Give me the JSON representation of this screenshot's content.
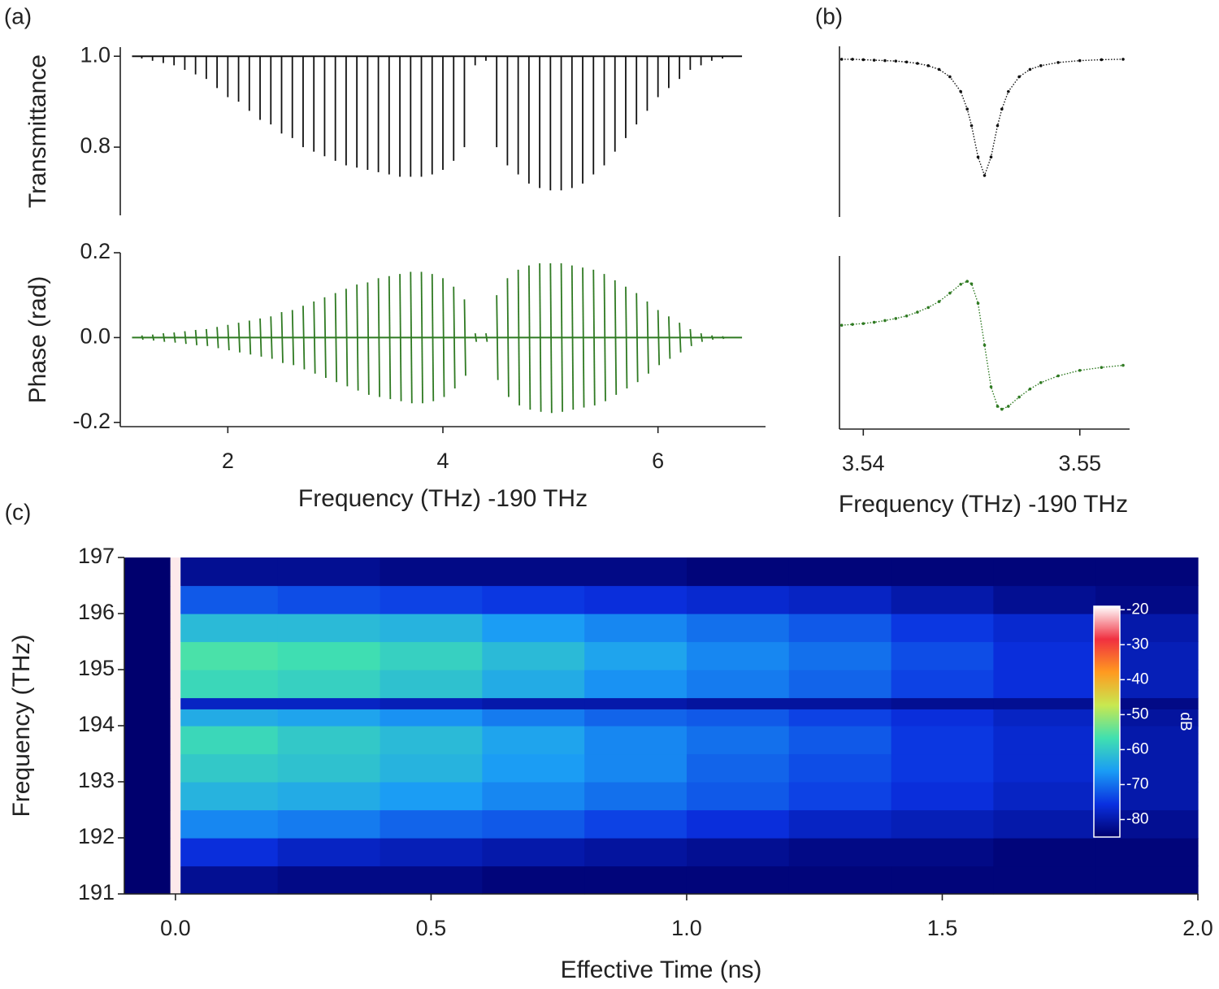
{
  "chart_data": [
    {
      "type": "comb",
      "panel": "(a)",
      "ylabel": "Transmittance",
      "color": "#111111",
      "baseline": 1,
      "xlim": [
        1.0,
        7.0
      ],
      "ylim": [
        0.65,
        1.02
      ],
      "yticks": [
        {
          "value": 1,
          "label": "1.0"
        },
        0.8
      ],
      "x": [
        1.2,
        1.3,
        1.4,
        1.5,
        1.6,
        1.7,
        1.8,
        1.9,
        2.0,
        2.1,
        2.2,
        2.3,
        2.4,
        2.5,
        2.6,
        2.7,
        2.8,
        2.9,
        3.0,
        3.1,
        3.2,
        3.3,
        3.4,
        3.5,
        3.6,
        3.7,
        3.8,
        3.9,
        4.0,
        4.1,
        4.2,
        4.3,
        4.4,
        4.5,
        4.6,
        4.7,
        4.8,
        4.9,
        5.0,
        5.1,
        5.2,
        5.3,
        5.4,
        5.5,
        5.6,
        5.7,
        5.8,
        5.9,
        6.0,
        6.1,
        6.2,
        6.3,
        6.4,
        6.5,
        6.6
      ],
      "values": [
        0.995,
        0.99,
        0.985,
        0.98,
        0.97,
        0.96,
        0.95,
        0.93,
        0.91,
        0.9,
        0.88,
        0.86,
        0.85,
        0.83,
        0.82,
        0.8,
        0.79,
        0.78,
        0.77,
        0.76,
        0.755,
        0.75,
        0.745,
        0.74,
        0.735,
        0.735,
        0.735,
        0.74,
        0.75,
        0.77,
        0.8,
        0.98,
        0.99,
        0.8,
        0.76,
        0.74,
        0.72,
        0.71,
        0.705,
        0.705,
        0.71,
        0.72,
        0.74,
        0.76,
        0.79,
        0.82,
        0.85,
        0.88,
        0.91,
        0.93,
        0.95,
        0.97,
        0.98,
        0.99,
        0.995
      ]
    },
    {
      "type": "comb-dispersion",
      "ylabel": "Phase (rad)",
      "xlabel": "Frequency (THz) -190 THz",
      "color": "#2f7a22",
      "baseline": 0,
      "xlim": [
        1.0,
        7.0
      ],
      "ylim": [
        -0.21,
        0.2
      ],
      "yticks": [
        0.2,
        {
          "value": 0,
          "label": "0.0"
        },
        -0.2
      ],
      "xticks": [
        2,
        4,
        6
      ],
      "x": [
        1.2,
        1.3,
        1.4,
        1.5,
        1.6,
        1.7,
        1.8,
        1.9,
        2.0,
        2.1,
        2.2,
        2.3,
        2.4,
        2.5,
        2.6,
        2.7,
        2.8,
        2.9,
        3.0,
        3.1,
        3.2,
        3.3,
        3.4,
        3.5,
        3.6,
        3.7,
        3.8,
        3.9,
        4.0,
        4.1,
        4.2,
        4.3,
        4.4,
        4.5,
        4.6,
        4.7,
        4.8,
        4.9,
        5.0,
        5.1,
        5.2,
        5.3,
        5.4,
        5.5,
        5.6,
        5.7,
        5.8,
        5.9,
        6.0,
        6.1,
        6.2,
        6.3,
        6.4,
        6.5,
        6.6
      ],
      "highs": [
        0.005,
        0.007,
        0.01,
        0.012,
        0.015,
        0.018,
        0.02,
        0.025,
        0.03,
        0.035,
        0.04,
        0.045,
        0.05,
        0.06,
        0.065,
        0.075,
        0.085,
        0.095,
        0.105,
        0.115,
        0.125,
        0.13,
        0.14,
        0.145,
        0.15,
        0.155,
        0.155,
        0.15,
        0.14,
        0.12,
        0.09,
        0.01,
        0.01,
        0.1,
        0.14,
        0.16,
        0.17,
        0.175,
        0.175,
        0.175,
        0.17,
        0.165,
        0.16,
        0.15,
        0.135,
        0.12,
        0.105,
        0.085,
        0.065,
        0.05,
        0.035,
        0.02,
        0.01,
        0.005,
        0.003
      ],
      "lows": [
        -0.005,
        -0.007,
        -0.01,
        -0.012,
        -0.015,
        -0.018,
        -0.02,
        -0.025,
        -0.03,
        -0.035,
        -0.04,
        -0.045,
        -0.05,
        -0.06,
        -0.065,
        -0.075,
        -0.085,
        -0.095,
        -0.105,
        -0.115,
        -0.125,
        -0.135,
        -0.14,
        -0.145,
        -0.15,
        -0.155,
        -0.155,
        -0.15,
        -0.14,
        -0.12,
        -0.09,
        -0.01,
        -0.01,
        -0.1,
        -0.14,
        -0.16,
        -0.17,
        -0.175,
        -0.178,
        -0.175,
        -0.17,
        -0.165,
        -0.16,
        -0.15,
        -0.135,
        -0.12,
        -0.105,
        -0.085,
        -0.065,
        -0.05,
        -0.035,
        -0.02,
        -0.01,
        -0.005,
        -0.003
      ]
    },
    {
      "type": "scatter",
      "panel": "(b)",
      "color": "#111111",
      "xlim": [
        3.5389,
        3.5523
      ],
      "ylim": [
        0.65,
        1.02
      ],
      "x": [
        3.539,
        3.5395,
        3.54,
        3.5405,
        3.541,
        3.5415,
        3.542,
        3.5425,
        3.543,
        3.5435,
        3.544,
        3.5445,
        3.5448,
        3.545,
        3.5453,
        3.5456,
        3.5459,
        3.5462,
        3.5464,
        3.5467,
        3.5472,
        3.5477,
        3.5482,
        3.549,
        3.55,
        3.551,
        3.552
      ],
      "values": [
        0.992,
        0.992,
        0.991,
        0.99,
        0.989,
        0.988,
        0.986,
        0.983,
        0.978,
        0.97,
        0.954,
        0.922,
        0.884,
        0.848,
        0.78,
        0.74,
        0.78,
        0.848,
        0.884,
        0.922,
        0.954,
        0.97,
        0.978,
        0.985,
        0.989,
        0.991,
        0.992
      ]
    },
    {
      "type": "scatter",
      "color": "#2f7a22",
      "xlabel": "Frequency (THz) -190 THz",
      "xlim": [
        3.5389,
        3.5523
      ],
      "ylim": [
        -0.21,
        0.2
      ],
      "xticks": [
        3.54,
        3.55
      ],
      "x": [
        3.539,
        3.5395,
        3.54,
        3.5405,
        3.541,
        3.5415,
        3.542,
        3.5425,
        3.543,
        3.5435,
        3.544,
        3.5445,
        3.5448,
        3.545,
        3.5453,
        3.5456,
        3.5459,
        3.5462,
        3.5464,
        3.5467,
        3.5472,
        3.5477,
        3.5482,
        3.549,
        3.55,
        3.551,
        3.552
      ],
      "values": [
        0.036,
        0.038,
        0.04,
        0.043,
        0.047,
        0.052,
        0.058,
        0.067,
        0.078,
        0.092,
        0.112,
        0.133,
        0.14,
        0.134,
        0.088,
        -0.011,
        -0.11,
        -0.156,
        -0.163,
        -0.156,
        -0.134,
        -0.115,
        -0.1,
        -0.084,
        -0.071,
        -0.064,
        -0.059
      ]
    },
    {
      "type": "heatmap",
      "panel": "(c)",
      "ylabel": "Frequency (THz)",
      "xlabel": "Effective Time (ns)",
      "xlim": [
        -0.1,
        2.0
      ],
      "ylim": [
        191,
        197
      ],
      "xticks": [
        {
          "value": 0,
          "label": "0.0"
        },
        0.5,
        {
          "value": 1,
          "label": "1.0"
        },
        1.5,
        {
          "value": 2,
          "label": "2.0"
        }
      ],
      "yticks": [
        191,
        192,
        193,
        194,
        195,
        196,
        197
      ],
      "x_edges": [
        -0.1,
        -0.01,
        0.01,
        0.2,
        0.4,
        0.6,
        0.8,
        1.0,
        1.2,
        1.4,
        1.6,
        1.8,
        2.0
      ],
      "y_edges": [
        191,
        191.5,
        192,
        192.5,
        193,
        193.5,
        194,
        194.3,
        194.5,
        195,
        195.5,
        196,
        196.5,
        197
      ],
      "z": [
        [
          -85,
          -20,
          -82,
          -83,
          -83,
          -84,
          -84,
          -84,
          -84,
          -84,
          -84,
          -84
        ],
        [
          -85,
          -20,
          -76,
          -78,
          -79,
          -80,
          -81,
          -82,
          -83,
          -83,
          -84,
          -84
        ],
        [
          -85,
          -20,
          -68,
          -69,
          -71,
          -72,
          -74,
          -76,
          -78,
          -79,
          -80,
          -82
        ],
        [
          -85,
          -20,
          -63,
          -64,
          -66,
          -68,
          -70,
          -72,
          -74,
          -76,
          -78,
          -80
        ],
        [
          -85,
          -20,
          -60,
          -61,
          -63,
          -66,
          -68,
          -71,
          -73,
          -75,
          -77,
          -80
        ],
        [
          -85,
          -20,
          -58,
          -60,
          -62,
          -65,
          -68,
          -70,
          -72,
          -75,
          -77,
          -80
        ],
        [
          -85,
          -20,
          -64,
          -65,
          -67,
          -69,
          -71,
          -72,
          -74,
          -76,
          -78,
          -81
        ],
        [
          -85,
          -20,
          -78,
          -78,
          -79,
          -80,
          -80,
          -81,
          -81,
          -82,
          -82,
          -83
        ],
        [
          -85,
          -20,
          -58,
          -59,
          -61,
          -64,
          -67,
          -69,
          -71,
          -74,
          -76,
          -79
        ],
        [
          -85,
          -20,
          -56,
          -57,
          -59,
          -62,
          -65,
          -68,
          -70,
          -73,
          -76,
          -79
        ],
        [
          -85,
          -20,
          -62,
          -62,
          -63,
          -66,
          -68,
          -70,
          -72,
          -75,
          -77,
          -80
        ],
        [
          -85,
          -20,
          -72,
          -73,
          -74,
          -75,
          -76,
          -77,
          -78,
          -80,
          -82,
          -83
        ],
        [
          -85,
          -20,
          -82,
          -82,
          -83,
          -83,
          -83,
          -84,
          -84,
          -84,
          -84,
          -84
        ]
      ],
      "clim": [
        -85,
        -19
      ],
      "colorscale": [
        "#00006e",
        "#0a30e0",
        "#1a9cf5",
        "#40e0b0",
        "#c8e850",
        "#ff9a20",
        "#f03040",
        "#ffffff"
      ],
      "colorbar_ticks": [
        -20,
        -30,
        -40,
        -50,
        -60,
        -70,
        -80
      ],
      "colorbar_label": "dB"
    }
  ]
}
